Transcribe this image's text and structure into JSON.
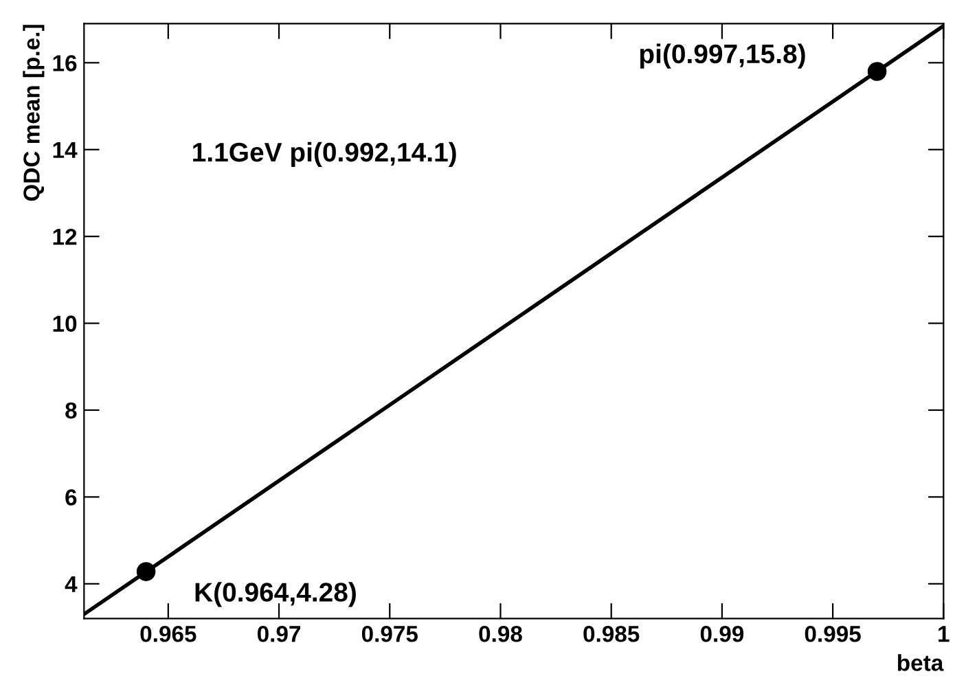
{
  "chart_data": {
    "type": "scatter",
    "xlabel": "beta",
    "ylabel": "QDC mean [p.e.]",
    "series": [
      {
        "color": "#000000",
        "x": [
          0.964,
          0.997
        ],
        "values": [
          4.28,
          15.8
        ],
        "marker": "circle"
      },
      {
        "type": "line",
        "color": "#000000",
        "x": [
          0.9612,
          1.0
        ],
        "values": [
          3.3,
          16.85
        ],
        "marker": "none"
      }
    ],
    "annotations": [
      {
        "text": "pi(0.997,15.8)",
        "x": 0.997,
        "y": 15.8
      },
      "1.1GeV pi(0.992,14.1)",
      {
        "text": "K(0.964,4.28)",
        "x": 0.964,
        "y": 4.28
      }
    ],
    "xlim": [
      0.9612,
      1.0
    ],
    "ylim": [
      3.2,
      16.9
    ],
    "xticks": [
      0.965,
      0.97,
      0.975,
      0.98,
      0.985,
      0.99,
      0.995,
      1
    ],
    "yticks": [
      4,
      6,
      8,
      10,
      12,
      14,
      16
    ],
    "grid": false,
    "legend": false
  }
}
